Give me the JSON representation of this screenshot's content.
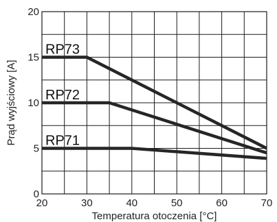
{
  "chart_data": {
    "type": "line",
    "xlabel": "Temperatura otoczenia [°C]",
    "ylabel": "Prąd wyjściowy [A]",
    "xlim": [
      20,
      70
    ],
    "ylim": [
      0,
      20
    ],
    "grid": true,
    "x_ticks": [
      20,
      30,
      40,
      50,
      60,
      70
    ],
    "y_ticks": [
      0,
      5,
      10,
      15,
      20
    ],
    "series": [
      {
        "name": "RP73",
        "x": [
          20,
          30,
          70
        ],
        "y": [
          15,
          15,
          5
        ]
      },
      {
        "name": "RP72",
        "x": [
          20,
          35,
          70
        ],
        "y": [
          10,
          10,
          4.5
        ]
      },
      {
        "name": "RP71",
        "x": [
          20,
          40,
          70
        ],
        "y": [
          5,
          5,
          3.9
        ]
      }
    ],
    "line_color": "#262626"
  }
}
